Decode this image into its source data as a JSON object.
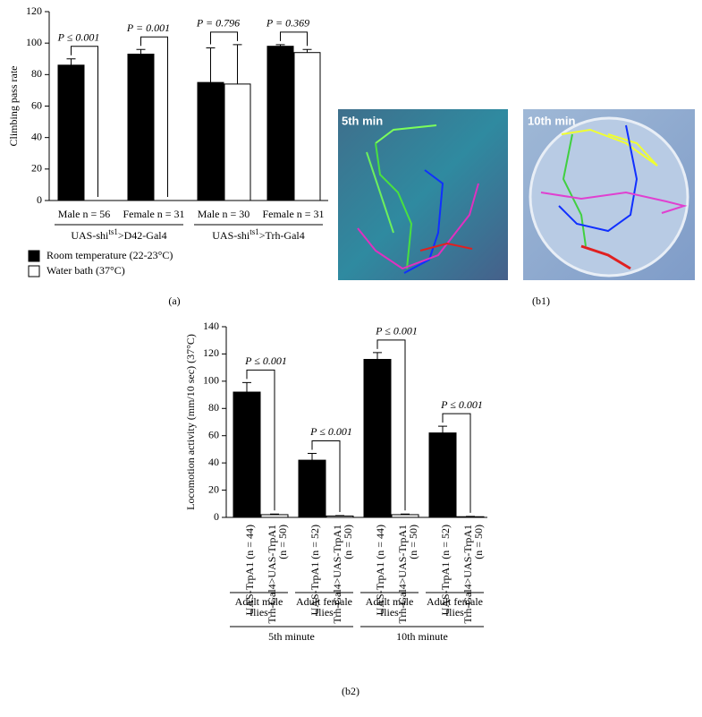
{
  "chart_data": [
    {
      "type": "bar",
      "y_label": "Climbing pass rate",
      "categories": [
        "Male n = 56",
        "Female n = 31",
        "Male n = 30",
        "Female n = 31"
      ],
      "groups": [
        [
          "UAS-shi",
          "ts1",
          ">D42-Gal4"
        ],
        [
          "UAS-shi",
          "ts1",
          ">Trh-Gal4"
        ]
      ],
      "series": [
        {
          "name": "Room temperature (22-23°C)",
          "color": "#000000",
          "values": [
            86,
            93,
            75,
            98
          ],
          "errors": [
            4,
            3,
            22,
            1
          ]
        },
        {
          "name": "Water bath (37°C)",
          "color": "#ffffff",
          "values": [
            0,
            0,
            74,
            94
          ],
          "errors": [
            null,
            null,
            25,
            2
          ]
        }
      ],
      "annotations": [
        "P ≤ 0.001",
        "P = 0.001",
        "P = 0.796",
        "P = 0.369"
      ],
      "ylim": [
        0,
        120
      ],
      "yticks": [
        0,
        20,
        40,
        60,
        80,
        100,
        120
      ],
      "panel_label": "(a)"
    },
    {
      "type": "bar",
      "y_label": "Locomotion activity (mm/10 sec) (37°C)",
      "categories": [
        [
          "UAS-TrpA1 (n = 44)"
        ],
        [
          "Trh-Gal4>UAS-TrpA1",
          "(n = 50)"
        ],
        [
          "UAS-TrpA1 (n = 52)"
        ],
        [
          "Trh-Gal4>UAS-TrpA1",
          "(n = 50)"
        ],
        [
          "UAS-TrpA1 (n = 44)"
        ],
        [
          "Trh-Gal4>UAS-TrpA1",
          "(n = 50)"
        ],
        [
          "UAS-TrpA1 (n = 52)"
        ],
        [
          "Trh-Gal4>UAS-TrpA1",
          "(n = 50)"
        ]
      ],
      "values": [
        92,
        2,
        42,
        1,
        116,
        2,
        62,
        0.5
      ],
      "errors": [
        7,
        0.5,
        5,
        0.3,
        5,
        0.5,
        5,
        0.2
      ],
      "colors": [
        "#000000",
        "#ffffff",
        "#000000",
        "#ffffff",
        "#000000",
        "#ffffff",
        "#000000",
        "#ffffff"
      ],
      "groups": [
        [
          "Adult male",
          "flies"
        ],
        [
          "Adult female",
          "flies"
        ],
        [
          "Adult male",
          "flies"
        ],
        [
          "Adult female",
          "flies"
        ]
      ],
      "supergroups": [
        "5th minute",
        "10th minute"
      ],
      "annotations": [
        "P ≤ 0.001",
        "P ≤ 0.001",
        "P ≤ 0.001",
        "P ≤ 0.001"
      ],
      "ylim": [
        0,
        140
      ],
      "yticks": [
        0,
        20,
        40,
        60,
        80,
        100,
        120,
        140
      ],
      "panel_label": "(b2)"
    }
  ],
  "photos": {
    "labels": [
      "5th min",
      "10th min"
    ],
    "panel_label": "(b1)"
  }
}
